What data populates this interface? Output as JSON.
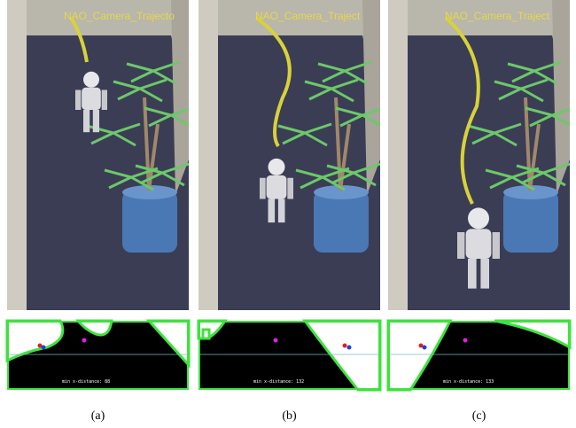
{
  "panels": [
    {
      "trajectory_label": "NAO_Camera_Trajecto",
      "distance_text": "min x-distance:  88",
      "caption": "(a)"
    },
    {
      "trajectory_label": "NAO_Camera_Traject",
      "distance_text": "min x-distance:  132",
      "caption": "(b)"
    },
    {
      "trajectory_label": "NAO_Camera_Traject",
      "distance_text": "min x-distance:  133",
      "caption": "(c)"
    }
  ]
}
